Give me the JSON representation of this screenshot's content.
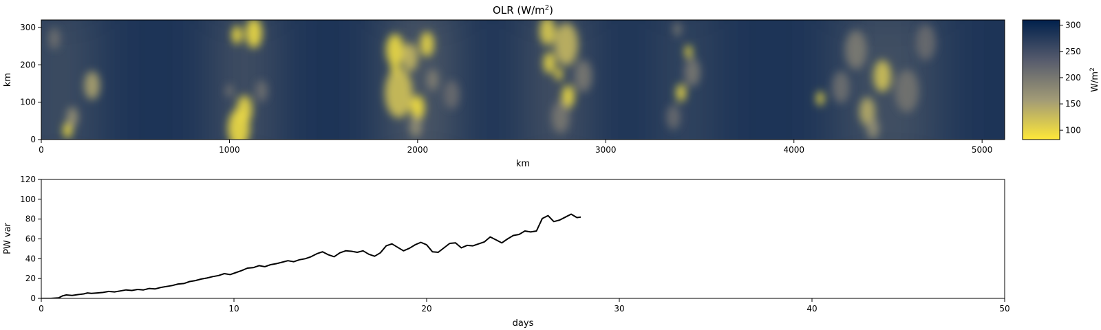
{
  "chart_data": [
    {
      "type": "heatmap",
      "title": "OLR (W/m",
      "title_sup": "2",
      "title_end": ")",
      "xlabel": "km",
      "ylabel": "km",
      "xlim": [
        0,
        5120
      ],
      "ylim": [
        0,
        320
      ],
      "xticks": [
        0,
        1000,
        2000,
        3000,
        4000,
        5000
      ],
      "yticks": [
        0,
        100,
        200,
        300
      ],
      "colormap": "cividis_r",
      "colorbar": {
        "label": "W/m",
        "label_sup": "2",
        "range": [
          82,
          310
        ],
        "ticks": [
          100,
          150,
          200,
          250,
          300
        ],
        "colors": [
          "#fee838",
          "#a29b76",
          "#575c6d",
          "#00204c"
        ]
      },
      "convective_bands_km": [
        {
          "x": 100,
          "width": 340,
          "strength": 0.45
        },
        {
          "x": 1080,
          "width": 240,
          "strength": 0.6
        },
        {
          "x": 2020,
          "width": 340,
          "strength": 0.65
        },
        {
          "x": 2740,
          "width": 300,
          "strength": 0.55
        },
        {
          "x": 3420,
          "width": 200,
          "strength": 0.4
        },
        {
          "x": 4500,
          "width": 520,
          "strength": 0.45
        }
      ],
      "cells": [
        {
          "x": 140,
          "y": 25,
          "r": 22,
          "v": 88
        },
        {
          "x": 165,
          "y": 60,
          "r": 28,
          "v": 165
        },
        {
          "x": 270,
          "y": 145,
          "r": 40,
          "v": 150
        },
        {
          "x": 70,
          "y": 270,
          "r": 30,
          "v": 210
        },
        {
          "x": 1050,
          "y": 30,
          "r": 55,
          "v": 95
        },
        {
          "x": 1080,
          "y": 80,
          "r": 40,
          "v": 100
        },
        {
          "x": 1000,
          "y": 130,
          "r": 18,
          "v": 200
        },
        {
          "x": 1130,
          "y": 285,
          "r": 42,
          "v": 95
        },
        {
          "x": 1040,
          "y": 280,
          "r": 26,
          "v": 90
        },
        {
          "x": 1170,
          "y": 130,
          "r": 30,
          "v": 210
        },
        {
          "x": 1900,
          "y": 125,
          "r": 70,
          "v": 120
        },
        {
          "x": 2000,
          "y": 85,
          "r": 35,
          "v": 88
        },
        {
          "x": 1880,
          "y": 240,
          "r": 45,
          "v": 95
        },
        {
          "x": 2050,
          "y": 255,
          "r": 35,
          "v": 100
        },
        {
          "x": 1960,
          "y": 220,
          "r": 40,
          "v": 130
        },
        {
          "x": 1880,
          "y": 195,
          "r": 22,
          "v": 95
        },
        {
          "x": 2080,
          "y": 160,
          "r": 30,
          "v": 190
        },
        {
          "x": 1990,
          "y": 35,
          "r": 30,
          "v": 170
        },
        {
          "x": 2180,
          "y": 120,
          "r": 40,
          "v": 215
        },
        {
          "x": 2690,
          "y": 290,
          "r": 40,
          "v": 110
        },
        {
          "x": 2790,
          "y": 255,
          "r": 60,
          "v": 130
        },
        {
          "x": 2700,
          "y": 205,
          "r": 30,
          "v": 100
        },
        {
          "x": 2750,
          "y": 175,
          "r": 18,
          "v": 88
        },
        {
          "x": 2800,
          "y": 115,
          "r": 32,
          "v": 95
        },
        {
          "x": 2880,
          "y": 170,
          "r": 45,
          "v": 200
        },
        {
          "x": 2760,
          "y": 60,
          "r": 45,
          "v": 200
        },
        {
          "x": 3440,
          "y": 235,
          "r": 18,
          "v": 90
        },
        {
          "x": 3400,
          "y": 125,
          "r": 25,
          "v": 100
        },
        {
          "x": 3460,
          "y": 180,
          "r": 40,
          "v": 200
        },
        {
          "x": 3360,
          "y": 60,
          "r": 35,
          "v": 215
        },
        {
          "x": 3380,
          "y": 295,
          "r": 20,
          "v": 200
        },
        {
          "x": 4140,
          "y": 110,
          "r": 20,
          "v": 100
        },
        {
          "x": 4470,
          "y": 170,
          "r": 45,
          "v": 120
        },
        {
          "x": 4390,
          "y": 75,
          "r": 40,
          "v": 140
        },
        {
          "x": 4420,
          "y": 30,
          "r": 30,
          "v": 170
        },
        {
          "x": 4330,
          "y": 240,
          "r": 55,
          "v": 195
        },
        {
          "x": 4600,
          "y": 130,
          "r": 60,
          "v": 205
        },
        {
          "x": 4250,
          "y": 140,
          "r": 45,
          "v": 210
        },
        {
          "x": 4700,
          "y": 260,
          "r": 50,
          "v": 215
        }
      ]
    },
    {
      "type": "line",
      "xlabel": "days",
      "ylabel": "PW var",
      "xlim": [
        0,
        50
      ],
      "ylim": [
        0,
        120
      ],
      "xticks": [
        0,
        10,
        20,
        30,
        40,
        50
      ],
      "yticks": [
        0,
        20,
        40,
        60,
        80,
        100,
        120
      ],
      "line_color": "#000000",
      "x": [
        0,
        0.5,
        0.9,
        1.1,
        1.3,
        1.6,
        1.9,
        2.2,
        2.4,
        2.6,
        2.9,
        3.2,
        3.5,
        3.8,
        4.1,
        4.4,
        4.7,
        5.0,
        5.3,
        5.6,
        5.9,
        6.2,
        6.5,
        6.8,
        7.1,
        7.4,
        7.7,
        8.0,
        8.3,
        8.6,
        8.9,
        9.2,
        9.5,
        9.8,
        10.1,
        10.4,
        10.7,
        11.0,
        11.3,
        11.6,
        11.9,
        12.2,
        12.5,
        12.8,
        13.1,
        13.4,
        13.7,
        14.0,
        14.3,
        14.6,
        14.9,
        15.2,
        15.5,
        15.8,
        16.1,
        16.4,
        16.7,
        17.0,
        17.3,
        17.6,
        17.9,
        18.2,
        18.5,
        18.8,
        19.1,
        19.4,
        19.7,
        20.0,
        20.3,
        20.6,
        20.9,
        21.2,
        21.5,
        21.8,
        22.1,
        22.4,
        22.7,
        23.0,
        23.3,
        23.6,
        23.9,
        24.2,
        24.5,
        24.8,
        25.1,
        25.4,
        25.7,
        26.0,
        26.3,
        26.6,
        26.9,
        27.2,
        27.5,
        27.8,
        28.0
      ],
      "y": [
        0,
        0,
        0.5,
        2.5,
        3.5,
        3.0,
        3.8,
        4.5,
        5.5,
        5.0,
        5.5,
        6.0,
        7.0,
        6.5,
        7.5,
        8.5,
        8.0,
        9.0,
        8.5,
        10.0,
        9.5,
        11.0,
        12.0,
        13.0,
        14.5,
        15.0,
        17.0,
        18.0,
        19.5,
        20.5,
        22.0,
        23.0,
        25.0,
        24.0,
        26.0,
        28.0,
        30.5,
        31.0,
        33.0,
        32.0,
        34.0,
        35.0,
        36.5,
        38.0,
        37.0,
        39.0,
        40.0,
        42.0,
        45.0,
        47.0,
        44.0,
        42.0,
        46.0,
        48.0,
        47.5,
        46.5,
        48.0,
        44.5,
        42.5,
        46.0,
        53.0,
        55.0,
        51.5,
        48.0,
        50.5,
        54.0,
        56.5,
        54.0,
        47.0,
        46.5,
        51.0,
        55.5,
        56.0,
        51.0,
        53.5,
        53.0,
        55.0,
        57.0,
        62.0,
        59.0,
        56.0,
        60.0,
        63.5,
        64.5,
        68.0,
        67.0,
        68.0,
        80.5,
        83.5,
        77.5,
        79.0,
        82.0,
        85.0,
        81.5,
        82.0
      ]
    }
  ]
}
